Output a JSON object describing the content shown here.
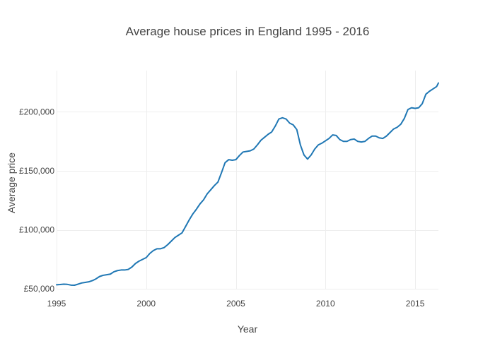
{
  "colors": {
    "series": "#1f77b4",
    "grid": "#eeeeee",
    "text": "#444444",
    "background": "#ffffff"
  },
  "chart_data": {
    "type": "line",
    "title": "Average house prices in England 1995 - 2016",
    "xlabel": "Year",
    "ylabel": "Average price",
    "xlim": [
      1995,
      2016.3
    ],
    "ylim": [
      49500,
      235000
    ],
    "grid": true,
    "legend": "none",
    "x_ticks": [
      {
        "value": 1995,
        "label": "1995"
      },
      {
        "value": 2000,
        "label": "2000"
      },
      {
        "value": 2005,
        "label": "2005"
      },
      {
        "value": 2010,
        "label": "2010"
      },
      {
        "value": 2015,
        "label": "2015"
      }
    ],
    "y_ticks": [
      {
        "value": 50000,
        "label": "£50,000"
      },
      {
        "value": 100000,
        "label": "£100,000"
      },
      {
        "value": 150000,
        "label": "£150,000"
      },
      {
        "value": 200000,
        "label": "£200,000"
      }
    ],
    "series": [
      {
        "x": [
          1995.0,
          1995.2,
          1995.4,
          1995.6,
          1995.8,
          1996.0,
          1996.2,
          1996.4,
          1996.6,
          1996.8,
          1997.0,
          1997.2,
          1997.4,
          1997.6,
          1997.8,
          1998.0,
          1998.2,
          1998.4,
          1998.6,
          1998.8,
          1999.0,
          1999.2,
          1999.4,
          1999.6,
          1999.8,
          2000.0,
          2000.2,
          2000.4,
          2000.6,
          2000.8,
          2001.0,
          2001.2,
          2001.4,
          2001.6,
          2001.8,
          2002.0,
          2002.2,
          2002.4,
          2002.6,
          2002.8,
          2003.0,
          2003.2,
          2003.4,
          2003.6,
          2003.8,
          2004.0,
          2004.2,
          2004.4,
          2004.6,
          2004.8,
          2005.0,
          2005.2,
          2005.4,
          2005.6,
          2005.8,
          2006.0,
          2006.2,
          2006.4,
          2006.6,
          2006.8,
          2007.0,
          2007.2,
          2007.4,
          2007.6,
          2007.8,
          2008.0,
          2008.2,
          2008.4,
          2008.6,
          2008.8,
          2009.0,
          2009.2,
          2009.4,
          2009.6,
          2009.8,
          2010.0,
          2010.2,
          2010.4,
          2010.6,
          2010.8,
          2011.0,
          2011.2,
          2011.4,
          2011.6,
          2011.8,
          2012.0,
          2012.2,
          2012.4,
          2012.6,
          2012.8,
          2013.0,
          2013.2,
          2013.4,
          2013.6,
          2013.8,
          2014.0,
          2014.2,
          2014.4,
          2014.6,
          2014.8,
          2015.0,
          2015.2,
          2015.4,
          2015.6,
          2015.8,
          2016.0,
          2016.2,
          2016.3
        ],
        "y": [
          53500,
          53700,
          54000,
          53800,
          53200,
          53100,
          54000,
          55000,
          55500,
          56000,
          57000,
          58500,
          60500,
          61500,
          62000,
          62500,
          64500,
          65500,
          66000,
          66000,
          66500,
          68500,
          71500,
          73500,
          75000,
          76500,
          80000,
          82500,
          84000,
          84000,
          85000,
          87500,
          90500,
          93500,
          95500,
          97500,
          103000,
          108500,
          113500,
          117500,
          122000,
          125500,
          130500,
          134000,
          137500,
          140500,
          148500,
          157000,
          159500,
          159000,
          159500,
          163000,
          166000,
          166500,
          167000,
          168500,
          172000,
          176000,
          178500,
          181000,
          183000,
          188000,
          194000,
          195000,
          194000,
          190500,
          189000,
          185000,
          172000,
          163500,
          160000,
          163500,
          168500,
          172000,
          173500,
          175500,
          177500,
          180500,
          180000,
          176500,
          175000,
          175000,
          176500,
          177000,
          175000,
          174500,
          175000,
          177500,
          179500,
          179500,
          178000,
          177500,
          179500,
          182500,
          185500,
          187000,
          189500,
          194500,
          202000,
          203500,
          203000,
          203500,
          207000,
          215000,
          217500,
          219500,
          221500,
          224500
        ]
      }
    ]
  }
}
